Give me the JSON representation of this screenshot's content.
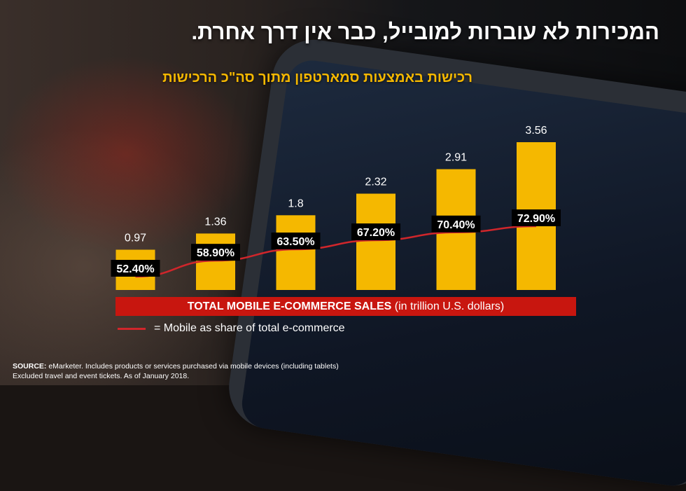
{
  "header": {
    "title": "המכירות לא עוברות למובייל, כבר אין דרך אחרת.",
    "subtitle": "רכישות באמצעות סמארטפון מתוך סה\"כ הרכישות"
  },
  "chart_data": {
    "type": "bar",
    "categories": [
      "",
      "",
      "",
      "",
      "",
      ""
    ],
    "series": [
      {
        "name": "TOTAL MOBILE E-COMMERCE SALES",
        "values": [
          0.97,
          1.36,
          1.8,
          2.32,
          2.91,
          3.56
        ],
        "color": "#f5b800"
      },
      {
        "name": "Mobile as share of total e-commerce",
        "values": [
          52.4,
          58.9,
          63.5,
          67.2,
          70.4,
          72.9
        ],
        "color": "#d0262b",
        "labels": [
          "52.40%",
          "58.90%",
          "63.50%",
          "67.20%",
          "70.40%",
          "72.90%"
        ]
      }
    ],
    "value_labels": [
      "0.97",
      "1.36",
      "1.8",
      "2.32",
      "2.91",
      "3.56"
    ],
    "ylim": [
      0,
      3.56
    ],
    "share_ylim": [
      0,
      100
    ],
    "xlabel_bold": "TOTAL MOBILE E-COMMERCE SALES",
    "xlabel_rest": "(in trillion U.S. dollars)",
    "legend": [
      {
        "label": "= Mobile as share of total e-commerce",
        "color": "#d0262b"
      }
    ],
    "grid": false
  },
  "source": {
    "label": "SOURCE:",
    "line1": "eMarketer. Includes products or services purchased via mobile devices (including tablets)",
    "line2": "Excluded travel and event tickets. As of January 2018."
  }
}
